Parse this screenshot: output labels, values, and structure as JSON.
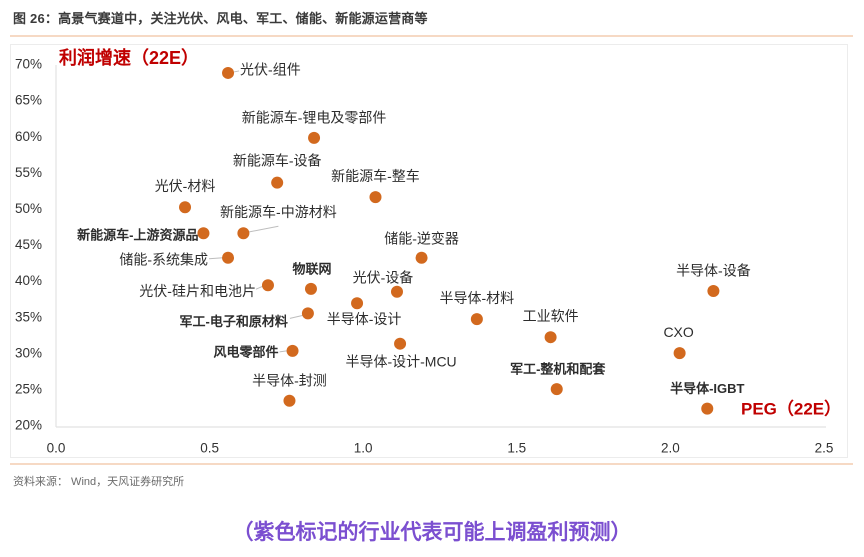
{
  "header": {
    "title": "图 26：高景气赛道中，关注光伏、风电、军工、储能、新能源运营商等"
  },
  "source": "资料来源：  Wind，天风证券研究所",
  "caption": "（紫色标记的行业代表可能上调盈利预测）",
  "colors": {
    "dot": "#D2691E",
    "highlight_label": "#7D3FB5",
    "normal_label": "#2d2d2d",
    "axis_title": "#C00000",
    "caption": "#7B4FD0",
    "axis_line": "#e2e2e2",
    "leader_line": "#bdbdbd"
  },
  "chart_data": {
    "type": "scatter",
    "title": "",
    "xlabel": "PEG（22E）",
    "ylabel": "利润增速（22E）",
    "xlim": [
      0,
      2.5
    ],
    "ylim": [
      20,
      70
    ],
    "grid": false,
    "legend": "none",
    "x_tick_values": [
      0,
      0.5,
      1.0,
      1.5,
      2.0,
      2.5
    ],
    "x_tick_labels": [
      "0.0",
      "0.5",
      "1.0",
      "1.5",
      "2.0",
      "2.5"
    ],
    "y_tick_values": [
      20,
      25,
      30,
      35,
      40,
      45,
      50,
      55,
      60,
      65,
      70
    ],
    "y_tick_labels": [
      "20%",
      "25%",
      "30%",
      "35%",
      "40%",
      "45%",
      "50%",
      "55%",
      "60%",
      "65%",
      "70%"
    ],
    "y_unit": "%",
    "points": [
      {
        "label": "光伏-组件",
        "x": 0.56,
        "y": 68.9,
        "highlight": false
      },
      {
        "label": "新能源车-锂电及零部件",
        "x": 0.84,
        "y": 59.9,
        "highlight": false
      },
      {
        "label": "新能源车-设备",
        "x": 0.72,
        "y": 53.7,
        "highlight": false
      },
      {
        "label": "新能源车-整车",
        "x": 1.04,
        "y": 51.7,
        "highlight": false
      },
      {
        "label": "光伏-材料",
        "x": 0.42,
        "y": 50.3,
        "highlight": false
      },
      {
        "label": "新能源车-上游资源品",
        "x": 0.48,
        "y": 46.7,
        "highlight": true
      },
      {
        "label": "新能源车-中游材料",
        "x": 0.61,
        "y": 46.7,
        "highlight": false
      },
      {
        "label": "储能-系统集成",
        "x": 0.56,
        "y": 43.3,
        "highlight": false
      },
      {
        "label": "储能-逆变器",
        "x": 1.19,
        "y": 43.3,
        "highlight": false
      },
      {
        "label": "光伏-硅片和电池片",
        "x": 0.69,
        "y": 39.5,
        "highlight": false
      },
      {
        "label": "物联网",
        "x": 0.83,
        "y": 39.0,
        "highlight": true
      },
      {
        "label": "光伏-设备",
        "x": 1.11,
        "y": 38.6,
        "highlight": false
      },
      {
        "label": "半导体-设备",
        "x": 2.14,
        "y": 38.7,
        "highlight": false
      },
      {
        "label": "半导体-设计",
        "x": 0.98,
        "y": 37.0,
        "highlight": false
      },
      {
        "label": "军工-电子和原材料",
        "x": 0.82,
        "y": 35.6,
        "highlight": true
      },
      {
        "label": "半导体-材料",
        "x": 1.37,
        "y": 34.8,
        "highlight": false
      },
      {
        "label": "工业软件",
        "x": 1.61,
        "y": 32.3,
        "highlight": false
      },
      {
        "label": "半导体-设计-MCU",
        "x": 1.12,
        "y": 31.4,
        "highlight": false
      },
      {
        "label": "风电零部件",
        "x": 0.77,
        "y": 30.4,
        "highlight": true
      },
      {
        "label": "CXO",
        "x": 2.03,
        "y": 30.1,
        "highlight": false
      },
      {
        "label": "军工-整机和配套",
        "x": 1.63,
        "y": 25.1,
        "highlight": true
      },
      {
        "label": "半导体-封测",
        "x": 0.76,
        "y": 23.5,
        "highlight": false
      },
      {
        "label": "半导体-IGBT",
        "x": 2.12,
        "y": 22.4,
        "highlight": true
      }
    ]
  }
}
